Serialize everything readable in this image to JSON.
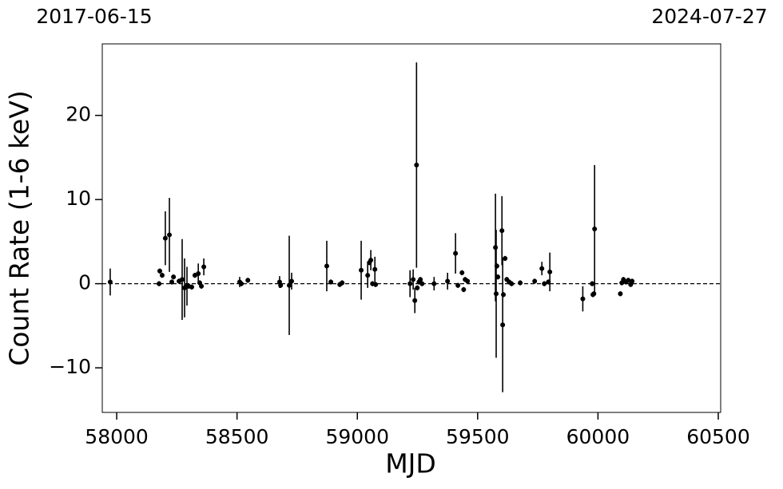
{
  "chart_data": {
    "type": "scatter",
    "top_left_label": "2017-06-15",
    "top_right_label": "2024-07-27",
    "x_label": "MJD",
    "y_label": "Count Rate (1-6 keV)",
    "xlim": [
      57940,
      60510
    ],
    "xticks": [
      58000,
      58500,
      59000,
      59500,
      60000,
      60500
    ],
    "ylim": [
      -15.3,
      28.5
    ],
    "yticks": [
      {
        "value": -10,
        "label": "−10"
      },
      0,
      10,
      20
    ],
    "hline": 0,
    "series": [
      {
        "color": "#000000",
        "x": [
          57973,
          58176,
          58179,
          58189,
          58202,
          58219,
          58229,
          58236,
          58259,
          58272,
          58282,
          58292,
          58299,
          58312,
          58325,
          58339,
          58345,
          58352,
          58362,
          58511,
          58518,
          58545,
          58677,
          58681,
          58717,
          58727,
          58873,
          58890,
          58927,
          58937,
          59016,
          59043,
          59050,
          59056,
          59063,
          59073,
          59076,
          59219,
          59232,
          59239,
          59246,
          59249,
          59256,
          59262,
          59269,
          59319,
          59375,
          59408,
          59418,
          59435,
          59442,
          59448,
          59458,
          59574,
          59577,
          59580,
          59584,
          59601,
          59604,
          59607,
          59614,
          59621,
          59631,
          59641,
          59677,
          59737,
          59767,
          59777,
          59794,
          59800,
          59937,
          59976,
          59979,
          59983,
          59986,
          60093,
          60099,
          60106,
          60116,
          60126,
          60136,
          60142
        ],
        "values": [
          0.2,
          0,
          1.5,
          1.0,
          5.4,
          5.8,
          0.2,
          0.8,
          0.3,
          0.5,
          -0.5,
          -0.3,
          -0.3,
          -0.4,
          1.0,
          1.2,
          0.1,
          -0.3,
          2.0,
          0.2,
          0,
          0.4,
          0.2,
          -0.2,
          -0.2,
          0.3,
          2.1,
          0.2,
          -0.1,
          0.1,
          1.6,
          1.0,
          2.5,
          2.8,
          0,
          1.7,
          -0.1,
          0,
          0.5,
          -2.0,
          14.1,
          -0.5,
          0.2,
          0.5,
          0,
          0,
          0.3,
          3.6,
          -0.2,
          1.3,
          -0.7,
          0.5,
          0.3,
          4.3,
          -1.2,
          2.1,
          0.8,
          6.3,
          -4.9,
          -1.3,
          3.0,
          0.5,
          0.2,
          0,
          0.1,
          0.3,
          1.8,
          0,
          0.2,
          1.4,
          -1.8,
          0,
          -1.3,
          -1.2,
          6.5,
          -1.2,
          0.1,
          0.5,
          0.2,
          0.4,
          -0.1,
          0.3
        ],
        "errors": [
          1.6,
          0.3,
          0.3,
          0.3,
          3.2,
          4.4,
          0.3,
          0.3,
          0.3,
          4.8,
          3.5,
          2.3,
          0.3,
          0.3,
          0.3,
          1.2,
          0.3,
          0.3,
          1.0,
          0.6,
          0.3,
          0.3,
          0.7,
          0.3,
          5.9,
          1.0,
          3.0,
          0.3,
          0.3,
          0.3,
          3.5,
          1.5,
          0.3,
          1.2,
          0.3,
          1.5,
          0.3,
          1.6,
          1.2,
          1.5,
          12.2,
          0.3,
          0.3,
          0.3,
          0.3,
          0.8,
          1.0,
          2.4,
          0.3,
          0.3,
          0.3,
          0.3,
          0.3,
          6.4,
          7.6,
          0.3,
          0.3,
          4.1,
          8.0,
          0.3,
          0.3,
          0.3,
          0.3,
          0.3,
          0.3,
          0.3,
          0.8,
          0.3,
          0.3,
          2.3,
          1.5,
          0.3,
          0.3,
          0.3,
          7.6,
          0.3,
          0.3,
          0.3,
          0.3,
          0.3,
          0.3,
          0.3
        ]
      }
    ]
  }
}
